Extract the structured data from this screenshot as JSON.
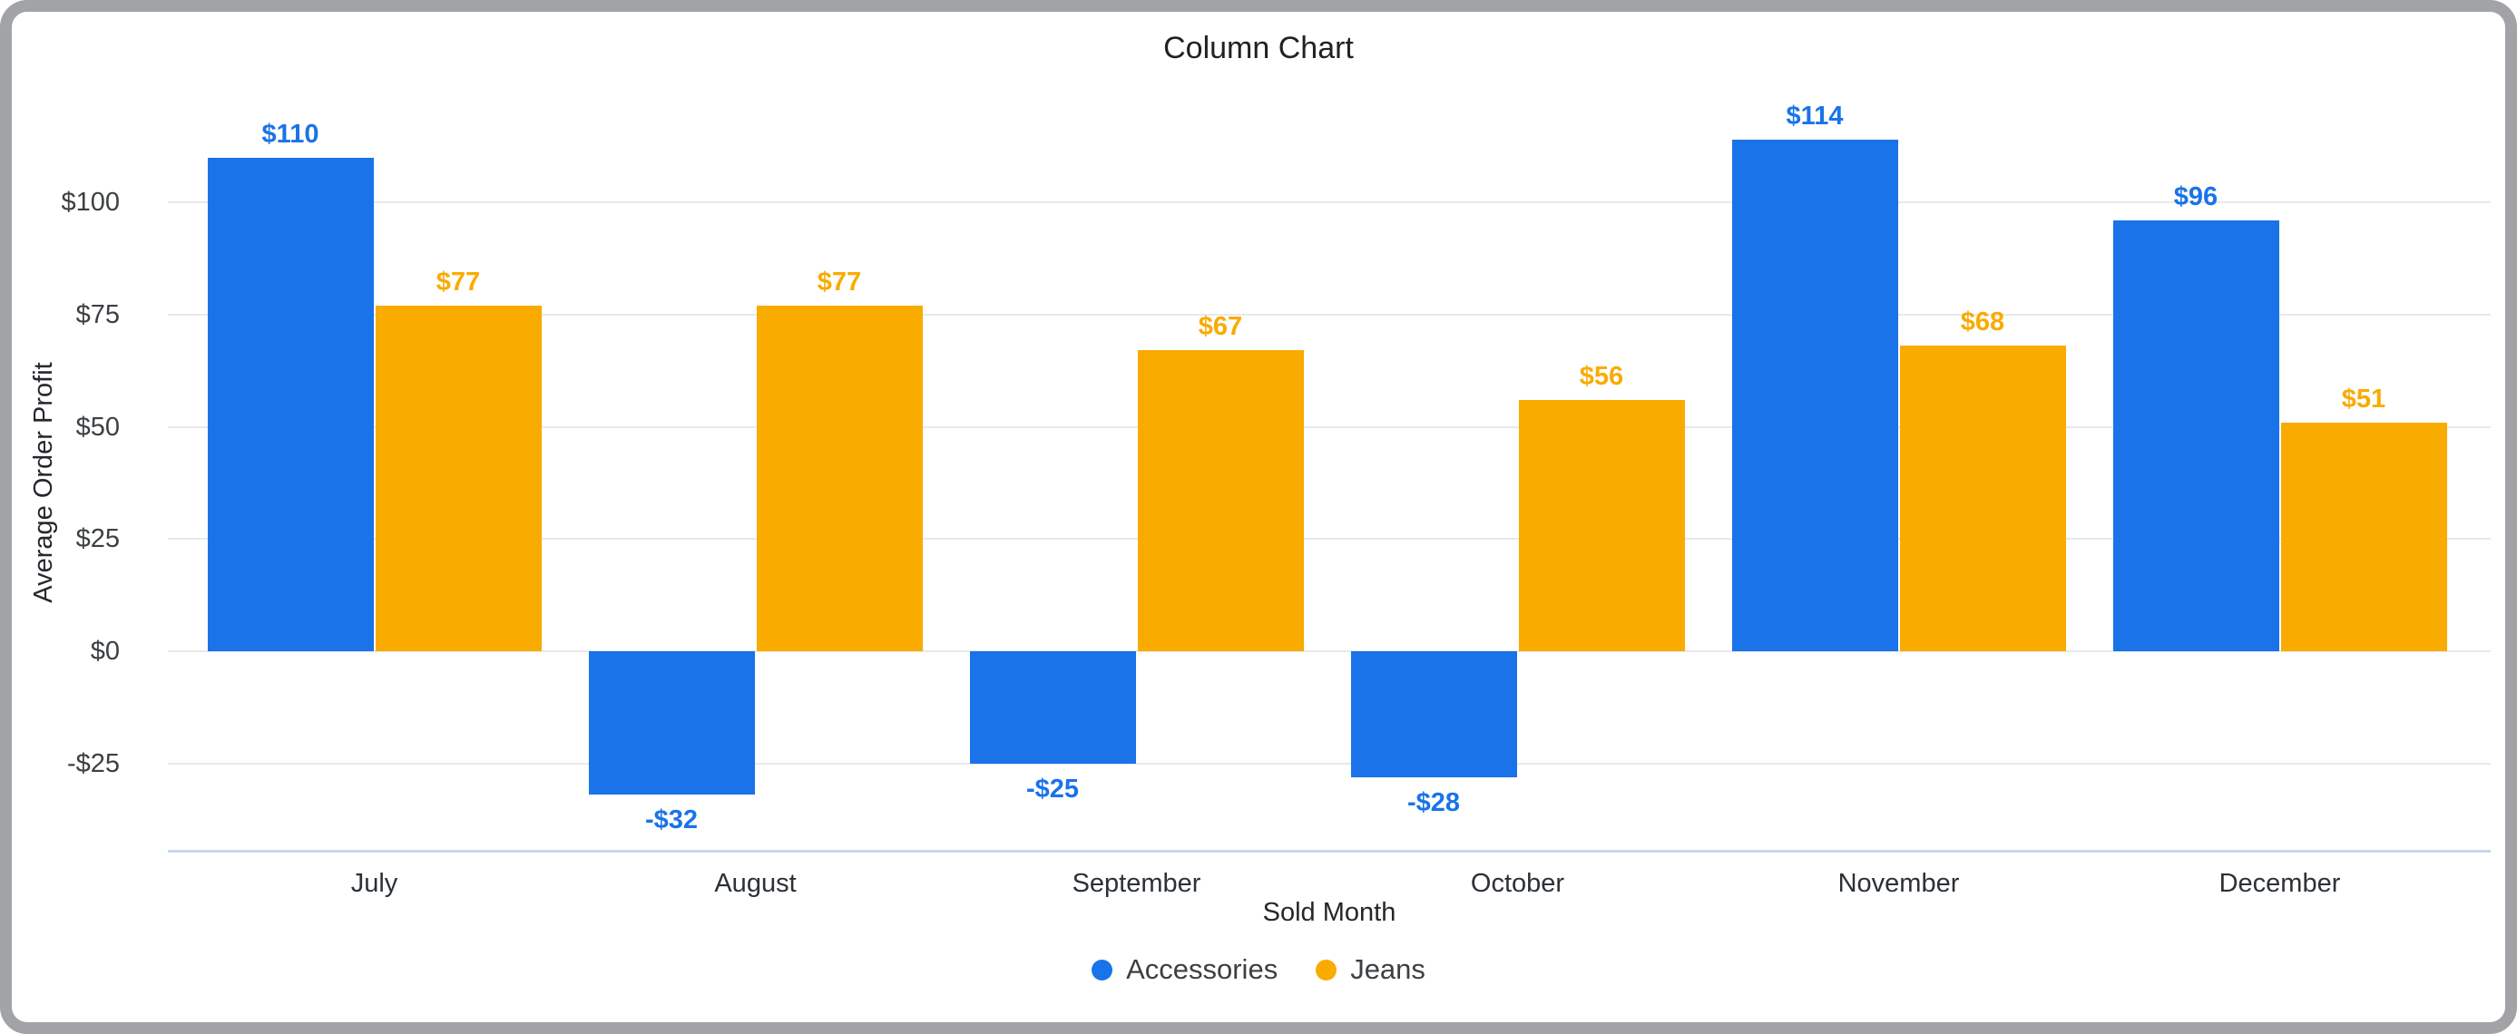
{
  "chart_data": {
    "type": "bar",
    "title": "Column Chart",
    "xlabel": "Sold Month",
    "ylabel": "Average Order Profit",
    "categories": [
      "July",
      "August",
      "September",
      "October",
      "November",
      "December"
    ],
    "series": [
      {
        "name": "Accessories",
        "color": "#1a73e8",
        "values": [
          110,
          -32,
          -25,
          -28,
          114,
          96
        ],
        "labels": [
          "$110",
          "-$32",
          "-$25",
          "-$28",
          "$114",
          "$96"
        ]
      },
      {
        "name": "Jeans",
        "color": "#f9ab00",
        "values": [
          77,
          77,
          67,
          56,
          68,
          51
        ],
        "labels": [
          "$77",
          "$77",
          "$67",
          "$56",
          "$68",
          "$51"
        ]
      }
    ],
    "y_ticks": [
      {
        "value": 100,
        "label": "$100"
      },
      {
        "value": 75,
        "label": "$75"
      },
      {
        "value": 50,
        "label": "$50"
      },
      {
        "value": 25,
        "label": "$25"
      },
      {
        "value": 0,
        "label": "$0"
      },
      {
        "value": -25,
        "label": "-$25"
      }
    ],
    "ylim": [
      -44,
      125
    ],
    "grid": true,
    "legend_position": "bottom"
  }
}
